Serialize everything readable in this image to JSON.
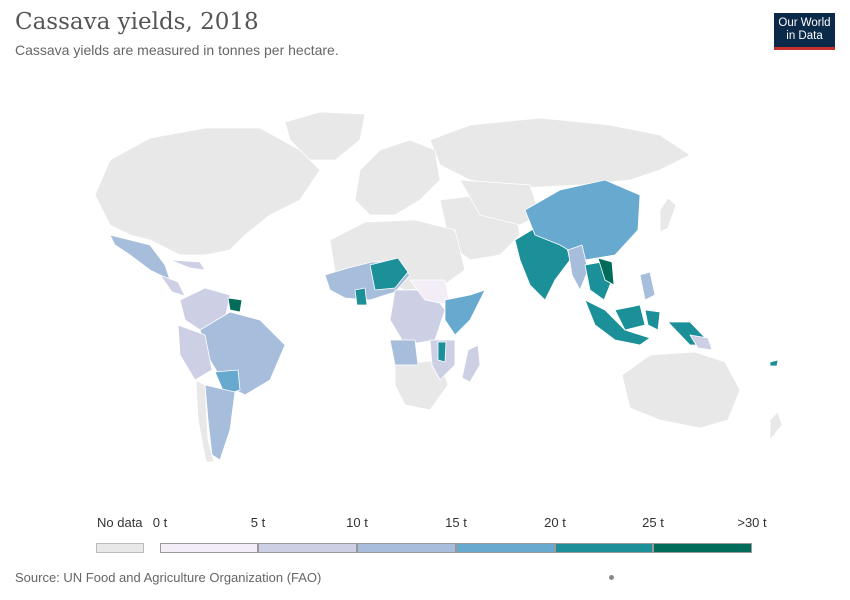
{
  "header": {
    "title": "Cassava yields, 2018",
    "subtitle": "Cassava yields are measured in tonnes per hectare.",
    "logo_line1": "Our World",
    "logo_line2": "in Data"
  },
  "legend": {
    "no_data_label": "No data",
    "bins": [
      {
        "label": "0 t",
        "color": "#f2edf7"
      },
      {
        "label": "5 t",
        "color": "#cdd0e5"
      },
      {
        "label": "10 t",
        "color": "#a6bddb"
      },
      {
        "label": "15 t",
        "color": "#67a9cf"
      },
      {
        "label": "20 t",
        "color": "#1c9099"
      },
      {
        "label": "25 t",
        "color": "#016c59"
      }
    ],
    "max_label": ">30 t",
    "no_data_color": "#e8e8e8"
  },
  "source": "Source: UN Food and Agriculture Organization (FAO)"
}
